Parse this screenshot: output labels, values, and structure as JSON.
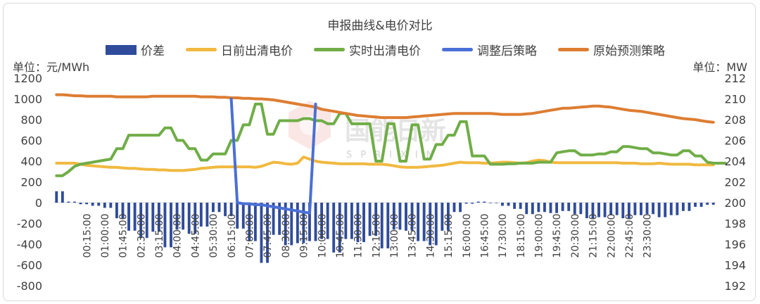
{
  "chart_data": {
    "type": "bar+line",
    "title": "申报曲线&电价对比",
    "left_unit": "单位：元/MWh",
    "right_unit": "单位：MW",
    "left_axis": {
      "min": -800,
      "max": 1200,
      "step": 200
    },
    "right_axis": {
      "min": 192,
      "max": 212,
      "step": 2
    },
    "x_tick_labels": [
      "00:15:00",
      "01:00:00",
      "01:45:00",
      "02:30:00",
      "03:15:00",
      "04:00:00",
      "04:45:00",
      "05:30:00",
      "06:15:00",
      "07:00:00",
      "07:45:00",
      "08:30:00",
      "09:15:00",
      "10:00:00",
      "10:45:00",
      "11:30:00",
      "12:15:00",
      "13:00:00",
      "13:45:00",
      "14:30:00",
      "15:15:00",
      "16:00:00",
      "16:45:00",
      "17:30:00",
      "18:15:00",
      "19:00:00",
      "19:45:00",
      "20:30:00",
      "21:15:00",
      "22:00:00",
      "22:45:00",
      "23:30:00"
    ],
    "legend": [
      {
        "name": "价差",
        "kind": "bar",
        "color": "#2f4b9b"
      },
      {
        "name": "日前出清电价",
        "kind": "line",
        "color": "#f0b940"
      },
      {
        "name": "实时出清电价",
        "kind": "line",
        "color": "#70ad47"
      },
      {
        "name": "调整后策略",
        "kind": "line",
        "color": "#4a6fd6"
      },
      {
        "name": "原始预测策略",
        "kind": "line",
        "color": "#dd7d32"
      }
    ],
    "series": [
      {
        "name": "价差",
        "axis": "left",
        "values": [
          110,
          110,
          10,
          10,
          -15,
          -15,
          -30,
          -30,
          -50,
          -50,
          -150,
          -150,
          -270,
          -270,
          -340,
          -340,
          -280,
          -280,
          -430,
          -430,
          -260,
          -260,
          -300,
          -300,
          -230,
          -230,
          -90,
          -90,
          -130,
          -130,
          -250,
          -250,
          -370,
          -370,
          -580,
          -580,
          -310,
          -310,
          -410,
          -410,
          -390,
          -390,
          -370,
          -370,
          -350,
          -350,
          -480,
          -480,
          -350,
          -350,
          -380,
          -380,
          -320,
          -320,
          -440,
          -440,
          -260,
          -260,
          -270,
          -270,
          -370,
          -370,
          -410,
          -410,
          -270,
          -270,
          -90,
          -90,
          -10,
          -10,
          10,
          10,
          -5,
          -5,
          -30,
          -30,
          -60,
          -60,
          -110,
          -110,
          -90,
          -90,
          -100,
          -100,
          -80,
          -80,
          -110,
          -110,
          -150,
          -150,
          -140,
          -140,
          -120,
          -120,
          -150,
          -150,
          -120,
          -120,
          -110,
          -110,
          -140,
          -140,
          -120,
          -120,
          -80,
          -80,
          -40,
          -40,
          -20,
          -20
        ]
      },
      {
        "name": "日前出清电价",
        "axis": "left",
        "values": [
          380,
          380,
          380,
          380,
          370,
          360,
          355,
          350,
          345,
          340,
          340,
          335,
          330,
          330,
          325,
          320,
          320,
          315,
          315,
          310,
          310,
          310,
          315,
          320,
          330,
          335,
          340,
          345,
          345,
          345,
          345,
          345,
          345,
          340,
          350,
          370,
          390,
          385,
          375,
          370,
          380,
          440,
          420,
          400,
          390,
          385,
          380,
          375,
          375,
          375,
          375,
          375,
          370,
          370,
          370,
          365,
          355,
          345,
          340,
          340,
          340,
          345,
          350,
          355,
          360,
          370,
          380,
          390,
          385,
          385,
          385,
          380,
          380,
          385,
          390,
          390,
          385,
          380,
          385,
          400,
          410,
          405,
          390,
          385,
          385,
          385,
          385,
          385,
          385,
          385,
          385,
          385,
          385,
          385,
          380,
          380,
          380,
          375,
          375,
          375,
          380,
          375,
          370,
          370,
          370,
          370,
          365,
          365,
          365,
          365
        ]
      },
      {
        "name": "实时出清电价",
        "axis": "left",
        "values": [
          260,
          260,
          300,
          350,
          370,
          380,
          390,
          400,
          410,
          420,
          520,
          520,
          650,
          650,
          650,
          650,
          650,
          650,
          720,
          720,
          600,
          600,
          520,
          520,
          410,
          410,
          470,
          470,
          470,
          600,
          600,
          750,
          750,
          950,
          950,
          660,
          660,
          790,
          790,
          790,
          790,
          810,
          810,
          790,
          790,
          760,
          760,
          860,
          860,
          760,
          760,
          760,
          760,
          400,
          400,
          760,
          760,
          400,
          400,
          750,
          750,
          420,
          420,
          560,
          560,
          650,
          650,
          780,
          780,
          450,
          450,
          450,
          370,
          370,
          370,
          375,
          375,
          380,
          380,
          380,
          390,
          390,
          390,
          480,
          490,
          500,
          500,
          460,
          460,
          460,
          470,
          470,
          490,
          490,
          540,
          540,
          530,
          520,
          520,
          480,
          480,
          470,
          460,
          460,
          500,
          500,
          450,
          450,
          390,
          380,
          380,
          380
        ]
      },
      {
        "name": "调整后策略",
        "axis": "right",
        "values": [
          null,
          null,
          null,
          null,
          null,
          null,
          null,
          null,
          null,
          null,
          null,
          null,
          null,
          null,
          null,
          null,
          null,
          null,
          null,
          null,
          null,
          null,
          null,
          null,
          null,
          null,
          null,
          null,
          null,
          210,
          200,
          199.9,
          199.9,
          199.8,
          199.8,
          199.7,
          199.6,
          199.5,
          199.4,
          199.3,
          199.2,
          199.1,
          199.0,
          209.5,
          null,
          null,
          null,
          null,
          null,
          null,
          null,
          null,
          null,
          null,
          null,
          null,
          null,
          null,
          null,
          null,
          null,
          null,
          null,
          null,
          null,
          null,
          null,
          null,
          null,
          null,
          null,
          null,
          null,
          null,
          null,
          null,
          null,
          null,
          null,
          null,
          null,
          null,
          null,
          null,
          null,
          null,
          null,
          null,
          null,
          null,
          null,
          null,
          null,
          null,
          null,
          null,
          null,
          null,
          null,
          null,
          null,
          null,
          null,
          null,
          null,
          null,
          null,
          null,
          null,
          null
        ]
      },
      {
        "name": "原始预测策略",
        "axis": "right",
        "values": [
          210.4,
          210.4,
          210.35,
          210.3,
          210.3,
          210.25,
          210.25,
          210.25,
          210.25,
          210.25,
          210.2,
          210.2,
          210.2,
          210.2,
          210.2,
          210.2,
          210.25,
          210.25,
          210.25,
          210.25,
          210.25,
          210.25,
          210.25,
          210.25,
          210.2,
          210.2,
          210.2,
          210.15,
          210.15,
          210.1,
          210.1,
          210.05,
          210.05,
          210.0,
          210.0,
          209.95,
          209.9,
          209.8,
          209.7,
          209.6,
          209.5,
          209.4,
          209.3,
          209.2,
          209.0,
          208.9,
          208.8,
          208.7,
          208.6,
          208.5,
          208.4,
          208.35,
          208.3,
          208.25,
          208.2,
          208.2,
          208.2,
          208.2,
          208.2,
          208.25,
          208.3,
          208.35,
          208.4,
          208.45,
          208.5,
          208.55,
          208.6,
          208.6,
          208.6,
          208.6,
          208.6,
          208.6,
          208.6,
          208.55,
          208.5,
          208.5,
          208.5,
          208.5,
          208.55,
          208.6,
          208.7,
          208.8,
          208.9,
          209.0,
          209.1,
          209.1,
          209.15,
          209.2,
          209.25,
          209.3,
          209.3,
          209.25,
          209.2,
          209.1,
          209.0,
          208.9,
          208.85,
          208.8,
          208.7,
          208.6,
          208.5,
          208.4,
          208.3,
          208.2,
          208.1,
          208.05,
          208.0,
          207.9,
          207.8,
          207.75
        ]
      }
    ],
    "watermark": {
      "text": "国能日新",
      "sub": "SPRIXIN"
    }
  }
}
